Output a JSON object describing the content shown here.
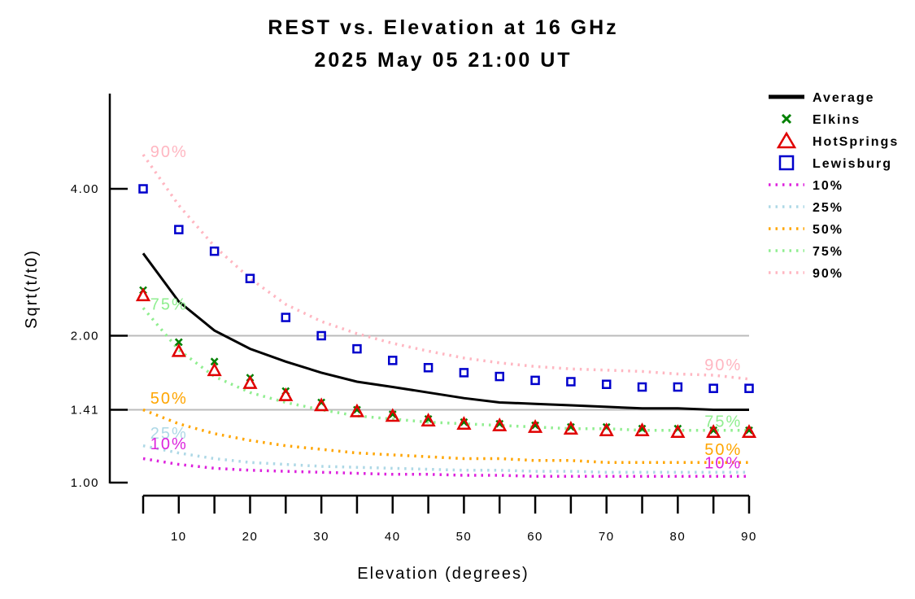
{
  "chart_data": {
    "type": "line",
    "title": "REST vs. Elevation at 16 GHz",
    "subtitle": "2025 May 05 21:00 UT",
    "xlabel": "Elevation (degrees)",
    "ylabel": "Sqrt(t/t0)",
    "xlim": [
      5,
      90
    ],
    "ylim": [
      1.0,
      4.0
    ],
    "y_scale": "log",
    "x_ticks": [
      10,
      20,
      30,
      40,
      50,
      60,
      70,
      80,
      90
    ],
    "y_ticks": [
      "1.00",
      "1.41",
      "2.00",
      "4.00"
    ],
    "reference_lines": [
      1.41,
      2.0
    ],
    "x": [
      5,
      10,
      15,
      20,
      25,
      30,
      35,
      40,
      45,
      50,
      55,
      60,
      65,
      70,
      75,
      80,
      85,
      90
    ],
    "series": [
      {
        "name": "Average",
        "style": "line",
        "color": "#000000",
        "values": [
          2.95,
          2.35,
          2.05,
          1.88,
          1.77,
          1.68,
          1.61,
          1.57,
          1.53,
          1.49,
          1.46,
          1.45,
          1.44,
          1.43,
          1.42,
          1.42,
          1.41,
          1.41
        ]
      },
      {
        "name": "Elkins",
        "style": "x-marker",
        "color": "#008000",
        "values": [
          2.48,
          1.94,
          1.77,
          1.64,
          1.54,
          1.46,
          1.41,
          1.38,
          1.35,
          1.33,
          1.32,
          1.31,
          1.3,
          1.3,
          1.29,
          1.29,
          1.28,
          1.28
        ]
      },
      {
        "name": "HotSprings",
        "style": "triangle-marker",
        "color": "#e00000",
        "values": [
          2.42,
          1.86,
          1.7,
          1.6,
          1.51,
          1.44,
          1.4,
          1.37,
          1.34,
          1.32,
          1.31,
          1.3,
          1.29,
          1.28,
          1.28,
          1.27,
          1.27,
          1.27
        ]
      },
      {
        "name": "Lewisburg",
        "style": "square-marker",
        "color": "#0000cc",
        "values": [
          4.0,
          3.3,
          2.98,
          2.62,
          2.18,
          2.0,
          1.88,
          1.78,
          1.72,
          1.68,
          1.65,
          1.62,
          1.61,
          1.59,
          1.57,
          1.57,
          1.56,
          1.56
        ]
      },
      {
        "name": "10%",
        "style": "dotted",
        "color": "#dd22dd",
        "values": [
          1.12,
          1.09,
          1.07,
          1.06,
          1.055,
          1.05,
          1.045,
          1.04,
          1.04,
          1.035,
          1.035,
          1.03,
          1.03,
          1.03,
          1.03,
          1.03,
          1.03,
          1.03
        ]
      },
      {
        "name": "25%",
        "style": "dotted",
        "color": "#add8e6",
        "values": [
          1.19,
          1.15,
          1.12,
          1.1,
          1.09,
          1.08,
          1.075,
          1.07,
          1.065,
          1.06,
          1.06,
          1.055,
          1.055,
          1.05,
          1.05,
          1.05,
          1.05,
          1.05
        ]
      },
      {
        "name": "50%",
        "style": "dotted",
        "color": "#ffa500",
        "values": [
          1.41,
          1.32,
          1.26,
          1.22,
          1.19,
          1.17,
          1.15,
          1.14,
          1.13,
          1.12,
          1.12,
          1.11,
          1.11,
          1.1,
          1.1,
          1.1,
          1.1,
          1.1
        ]
      },
      {
        "name": "75%",
        "style": "dotted",
        "color": "#90ee90",
        "values": [
          2.28,
          1.87,
          1.65,
          1.53,
          1.46,
          1.41,
          1.37,
          1.35,
          1.33,
          1.32,
          1.31,
          1.3,
          1.29,
          1.29,
          1.28,
          1.28,
          1.28,
          1.28
        ]
      },
      {
        "name": "90%",
        "style": "dotted",
        "color": "#ffb6c1",
        "values": [
          4.7,
          3.7,
          3.05,
          2.62,
          2.32,
          2.14,
          2.02,
          1.93,
          1.86,
          1.8,
          1.76,
          1.73,
          1.71,
          1.7,
          1.69,
          1.67,
          1.66,
          1.63
        ]
      }
    ],
    "curve_labels": [
      {
        "text": "90%",
        "color": "#ffb6c1",
        "x": 6,
        "y": 4.65,
        "anchor": "start"
      },
      {
        "text": "75%",
        "color": "#90ee90",
        "x": 6,
        "y": 2.26,
        "anchor": "start"
      },
      {
        "text": "50%",
        "color": "#ffa500",
        "x": 6,
        "y": 1.45,
        "anchor": "start"
      },
      {
        "text": "25%",
        "color": "#add8e6",
        "x": 6,
        "y": 1.23,
        "anchor": "start"
      },
      {
        "text": "10%",
        "color": "#dd22dd",
        "x": 6,
        "y": 1.17,
        "anchor": "start"
      },
      {
        "text": "90%",
        "color": "#ffb6c1",
        "x": 89,
        "y": 1.7,
        "anchor": "end"
      },
      {
        "text": "75%",
        "color": "#90ee90",
        "x": 89,
        "y": 1.3,
        "anchor": "end"
      },
      {
        "text": "50%",
        "color": "#ffa500",
        "x": 89,
        "y": 1.14,
        "anchor": "end"
      },
      {
        "text": "10%",
        "color": "#dd22dd",
        "x": 89,
        "y": 1.07,
        "anchor": "end"
      }
    ],
    "legend_placement": "top-right",
    "grid": false
  }
}
